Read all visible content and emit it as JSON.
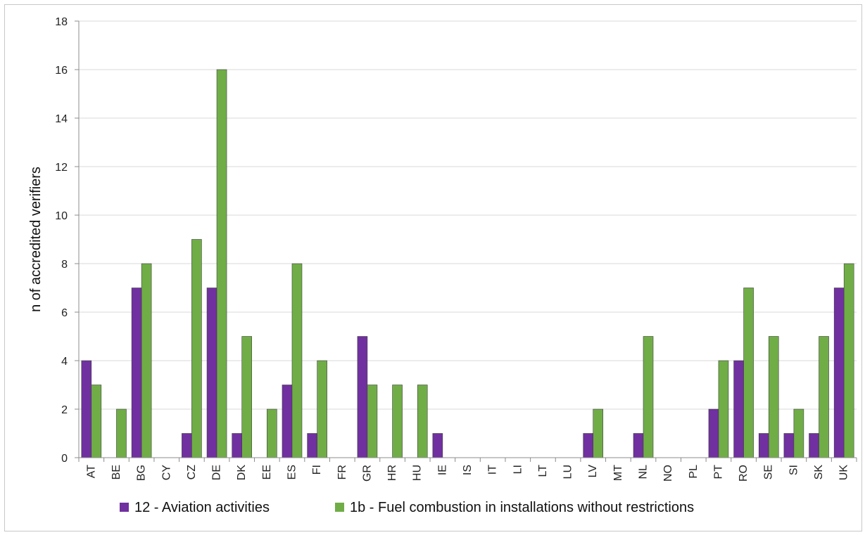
{
  "chart_data": {
    "type": "bar",
    "title": "",
    "xlabel": "",
    "ylabel": "n of accredited verifiers",
    "ylim": [
      0,
      18
    ],
    "yticks": [
      0,
      2,
      4,
      6,
      8,
      10,
      12,
      14,
      16,
      18
    ],
    "grid": true,
    "legend_position": "bottom",
    "categories": [
      "AT",
      "BE",
      "BG",
      "CY",
      "CZ",
      "DE",
      "DK",
      "EE",
      "ES",
      "FI",
      "FR",
      "GR",
      "HR",
      "HU",
      "IE",
      "IS",
      "IT",
      "LI",
      "LT",
      "LU",
      "LV",
      "MT",
      "NL",
      "NO",
      "PL",
      "PT",
      "RO",
      "SE",
      "SI",
      "SK",
      "UK"
    ],
    "series": [
      {
        "name": "12 - Aviation activities",
        "color": "#7030a0",
        "values": [
          4,
          0,
          7,
          0,
          1,
          7,
          1,
          0,
          3,
          1,
          0,
          5,
          0,
          0,
          1,
          0,
          0,
          0,
          0,
          0,
          1,
          0,
          1,
          0,
          0,
          2,
          4,
          1,
          1,
          1,
          7
        ]
      },
      {
        "name": "1b - Fuel combustion in installations without restrictions",
        "color": "#70ad47",
        "values": [
          3,
          2,
          8,
          0,
          9,
          16,
          5,
          2,
          8,
          4,
          0,
          3,
          3,
          3,
          0,
          0,
          0,
          0,
          0,
          0,
          2,
          0,
          5,
          0,
          0,
          4,
          7,
          5,
          2,
          5,
          8
        ]
      }
    ]
  }
}
